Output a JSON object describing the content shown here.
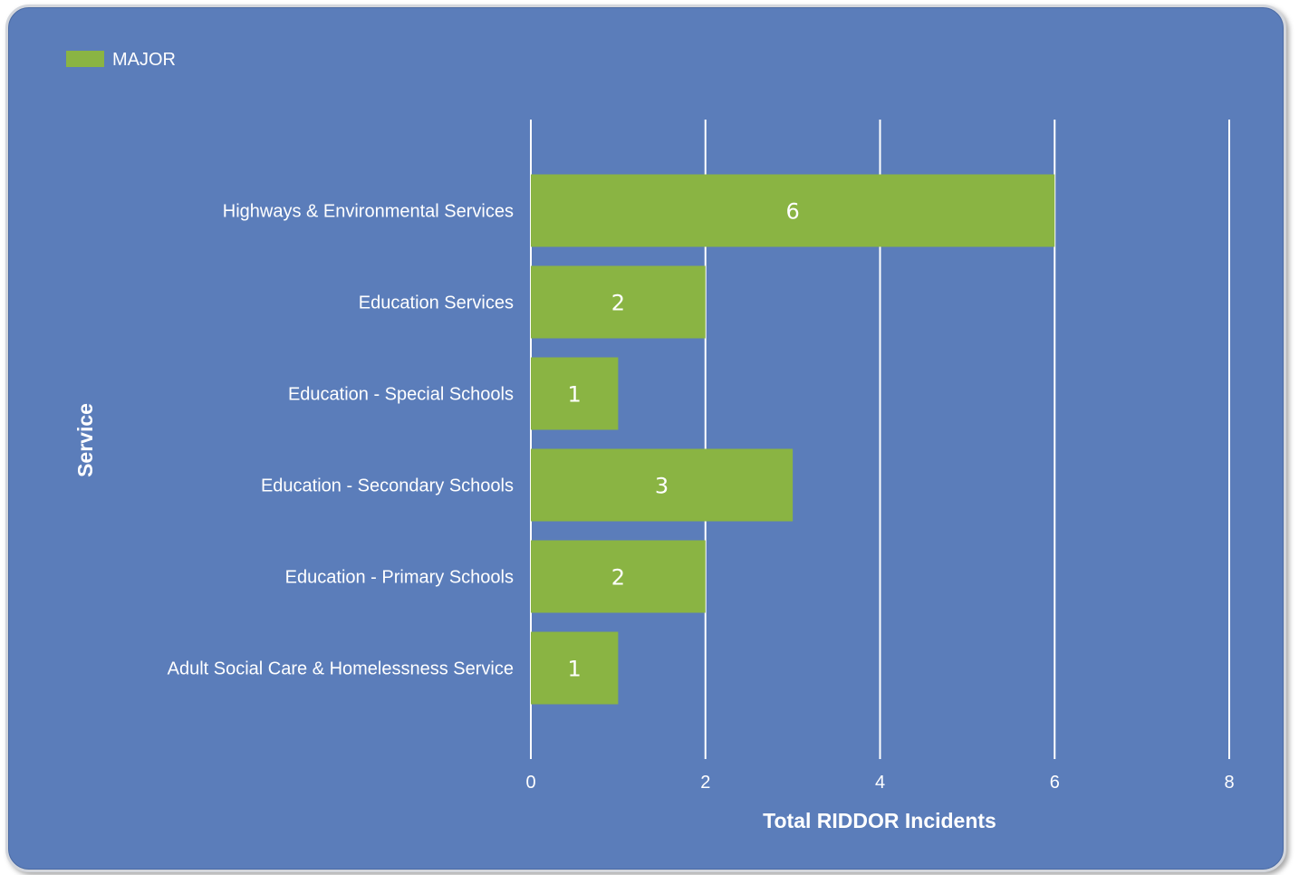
{
  "chart_data": {
    "type": "bar",
    "orientation": "horizontal",
    "categories": [
      "Highways & Environmental Services",
      "Education Services",
      "Education - Special Schools",
      "Education - Secondary Schools",
      "Education - Primary Schools",
      "Adult Social Care & Homelessness Service"
    ],
    "series": [
      {
        "name": "MAJOR",
        "values": [
          6,
          2,
          1,
          3,
          2,
          1
        ],
        "color": "#8ab443"
      }
    ],
    "xlabel": "Total RIDDOR Incidents",
    "ylabel": "Service",
    "xlim": [
      0,
      8
    ],
    "xticks": [
      "0",
      "2",
      "4",
      "6",
      "8"
    ],
    "grid": true,
    "legend": "top-left",
    "data_labels": true,
    "colors": {
      "background": "#5b7dba",
      "gridline": "#ffffff",
      "text": "#ffffff"
    }
  }
}
